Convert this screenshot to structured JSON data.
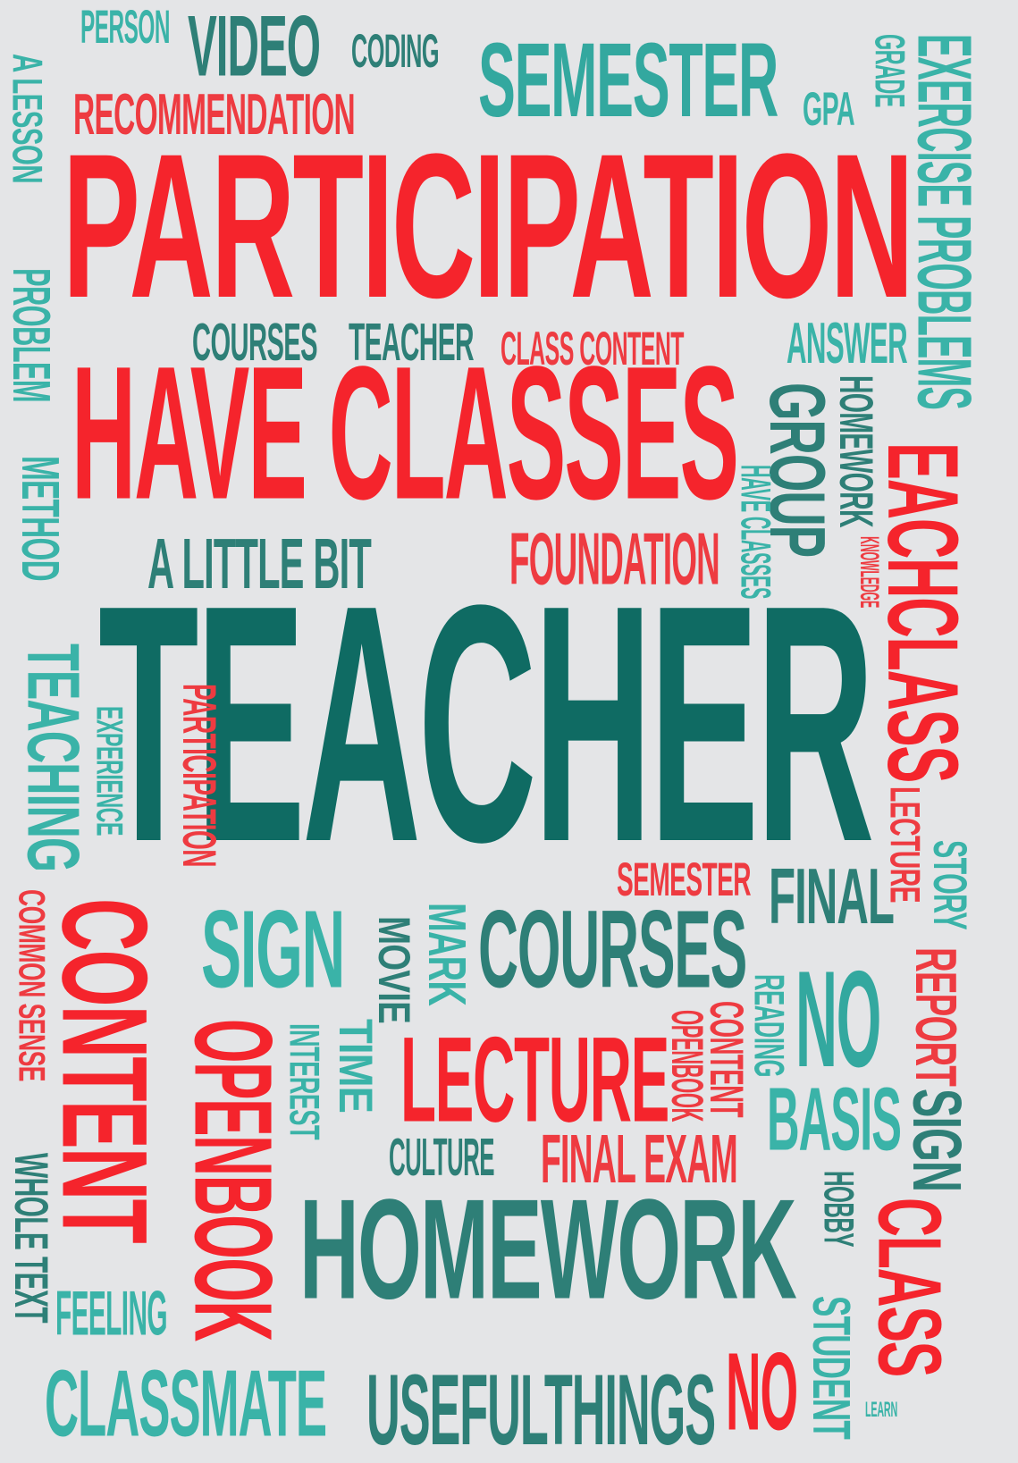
{
  "palette": {
    "red": "#f5242c",
    "red_soft": "#ee3b41",
    "teal_dark": "#0f6b63",
    "teal_mid": "#2e7f77",
    "teal": "#33a89f",
    "teal_light": "#3ab3a8",
    "background": "#e4e5e7"
  },
  "words": [
    {
      "text": "PERSON",
      "color": "teal_light"
    },
    {
      "text": "VIDEO",
      "color": "teal_mid"
    },
    {
      "text": "CODING",
      "color": "teal_mid"
    },
    {
      "text": "SEMESTER",
      "color": "teal"
    },
    {
      "text": "GRADE",
      "color": "teal_light"
    },
    {
      "text": "EXERCISE PROBLEMS",
      "color": "teal_light"
    },
    {
      "text": "A LESSON",
      "color": "teal_light"
    },
    {
      "text": "RECOMMENDATION",
      "color": "red_soft"
    },
    {
      "text": "GPA",
      "color": "teal_light"
    },
    {
      "text": "PARTICIPATION",
      "color": "red"
    },
    {
      "text": "PROBLEM",
      "color": "teal_light"
    },
    {
      "text": "COURSES",
      "color": "teal_mid"
    },
    {
      "text": "TEACHER",
      "color": "teal_mid"
    },
    {
      "text": "CLASS CONTENT",
      "color": "red_soft"
    },
    {
      "text": "ANSWER",
      "color": "teal_light"
    },
    {
      "text": "HAVE CLASSES",
      "color": "red"
    },
    {
      "text": "HOMEWORK",
      "color": "teal_mid"
    },
    {
      "text": "GROUP",
      "color": "teal_mid"
    },
    {
      "text": "HAVE CLASSES",
      "color": "teal_light"
    },
    {
      "text": "EACHCLASS",
      "color": "red"
    },
    {
      "text": "KNOWLEDGE",
      "color": "red_soft"
    },
    {
      "text": "METHOD",
      "color": "teal_light"
    },
    {
      "text": "A LITTLE BIT",
      "color": "teal_mid"
    },
    {
      "text": "FOUNDATION",
      "color": "red_soft"
    },
    {
      "text": "TEACHER",
      "color": "teal_dark"
    },
    {
      "text": "TEACHING",
      "color": "teal_light"
    },
    {
      "text": "EXPERIENCE",
      "color": "teal_light"
    },
    {
      "text": "PARTICIPATION",
      "color": "red_soft"
    },
    {
      "text": "SEMESTER",
      "color": "red_soft"
    },
    {
      "text": "FINAL",
      "color": "teal_mid"
    },
    {
      "text": "LECTURE",
      "color": "red_soft"
    },
    {
      "text": "STORY",
      "color": "teal_light"
    },
    {
      "text": "COMMON SENSE",
      "color": "red_soft"
    },
    {
      "text": "CONTENT",
      "color": "red"
    },
    {
      "text": "SIGN",
      "color": "teal_light"
    },
    {
      "text": "MOVIE",
      "color": "teal_mid"
    },
    {
      "text": "MARK",
      "color": "teal_light"
    },
    {
      "text": "COURSES",
      "color": "teal_mid"
    },
    {
      "text": "REPORT",
      "color": "red_soft"
    },
    {
      "text": "NO",
      "color": "teal"
    },
    {
      "text": "READING",
      "color": "teal_light"
    },
    {
      "text": "CONTENT",
      "color": "red_soft"
    },
    {
      "text": "OPENBOOK",
      "color": "red_soft"
    },
    {
      "text": "OPENBOOK",
      "color": "red"
    },
    {
      "text": "INTEREST",
      "color": "teal_light"
    },
    {
      "text": "TIME",
      "color": "teal_light"
    },
    {
      "text": "LECTURE",
      "color": "red"
    },
    {
      "text": "BASIS",
      "color": "teal_light"
    },
    {
      "text": "SIGN",
      "color": "teal_mid"
    },
    {
      "text": "CULTURE",
      "color": "teal_mid"
    },
    {
      "text": "FINAL EXAM",
      "color": "red_soft"
    },
    {
      "text": "WHOLE TEXT",
      "color": "teal_mid"
    },
    {
      "text": "HOBBY",
      "color": "teal_mid"
    },
    {
      "text": "CLASS",
      "color": "red"
    },
    {
      "text": "HOMEWORK",
      "color": "teal_mid"
    },
    {
      "text": "FEELING",
      "color": "teal_light"
    },
    {
      "text": "STUDENT",
      "color": "teal_light"
    },
    {
      "text": "CLASSMATE",
      "color": "teal_light"
    },
    {
      "text": "USEFULTHINGS",
      "color": "teal_mid"
    },
    {
      "text": "NO",
      "color": "red"
    },
    {
      "text": "LEARN",
      "color": "teal_light"
    }
  ]
}
